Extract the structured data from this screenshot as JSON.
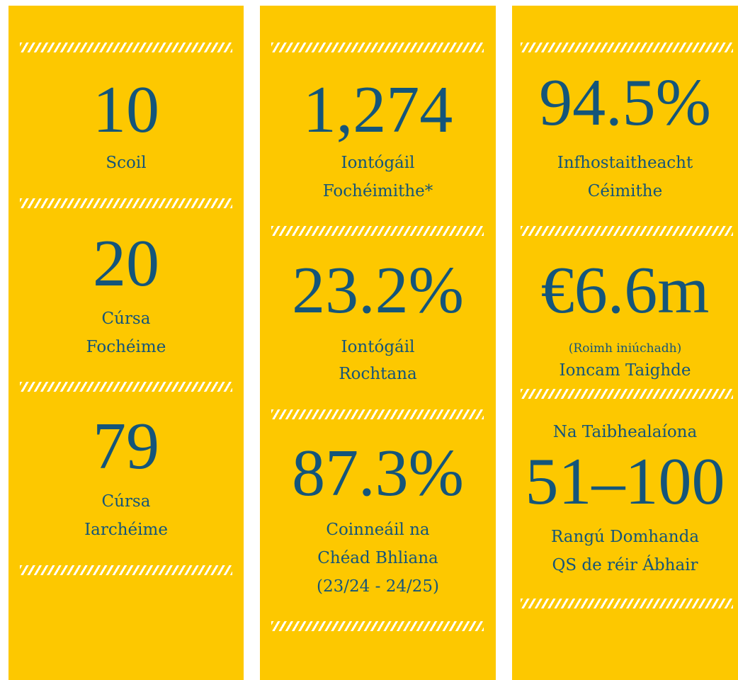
{
  "columns": [
    {
      "stats": [
        {
          "value": "10",
          "label": [
            "Scoil"
          ]
        },
        {
          "value": "20",
          "label": [
            "Cúrsa",
            "Fochéime"
          ]
        },
        {
          "value": "79",
          "label": [
            "Cúrsa",
            "Iarchéime"
          ]
        }
      ]
    },
    {
      "stats": [
        {
          "value": "1,274",
          "label": [
            "Iontógáil",
            "Fochéimithe*"
          ]
        },
        {
          "value": "23.2%",
          "label": [
            "Iontógáil",
            "Rochtana"
          ]
        },
        {
          "value": "87.3%",
          "label": [
            "Coinneáil na",
            "Chéad Bhliana",
            "(23/24 - 24/25)"
          ]
        }
      ]
    },
    {
      "stats": [
        {
          "value": "94.5%",
          "label": [
            "Infhostaitheacht",
            "Céimithe"
          ]
        },
        {
          "value": "€6.6m",
          "note": "(Roimh iniúchadh)",
          "label": [
            "Ioncam Taighde"
          ]
        },
        {
          "heading": "Na Taibhealaíona",
          "value": "51–100",
          "label": [
            "Rangú Domhanda",
            "QS de réir Ábhair"
          ]
        }
      ]
    }
  ]
}
